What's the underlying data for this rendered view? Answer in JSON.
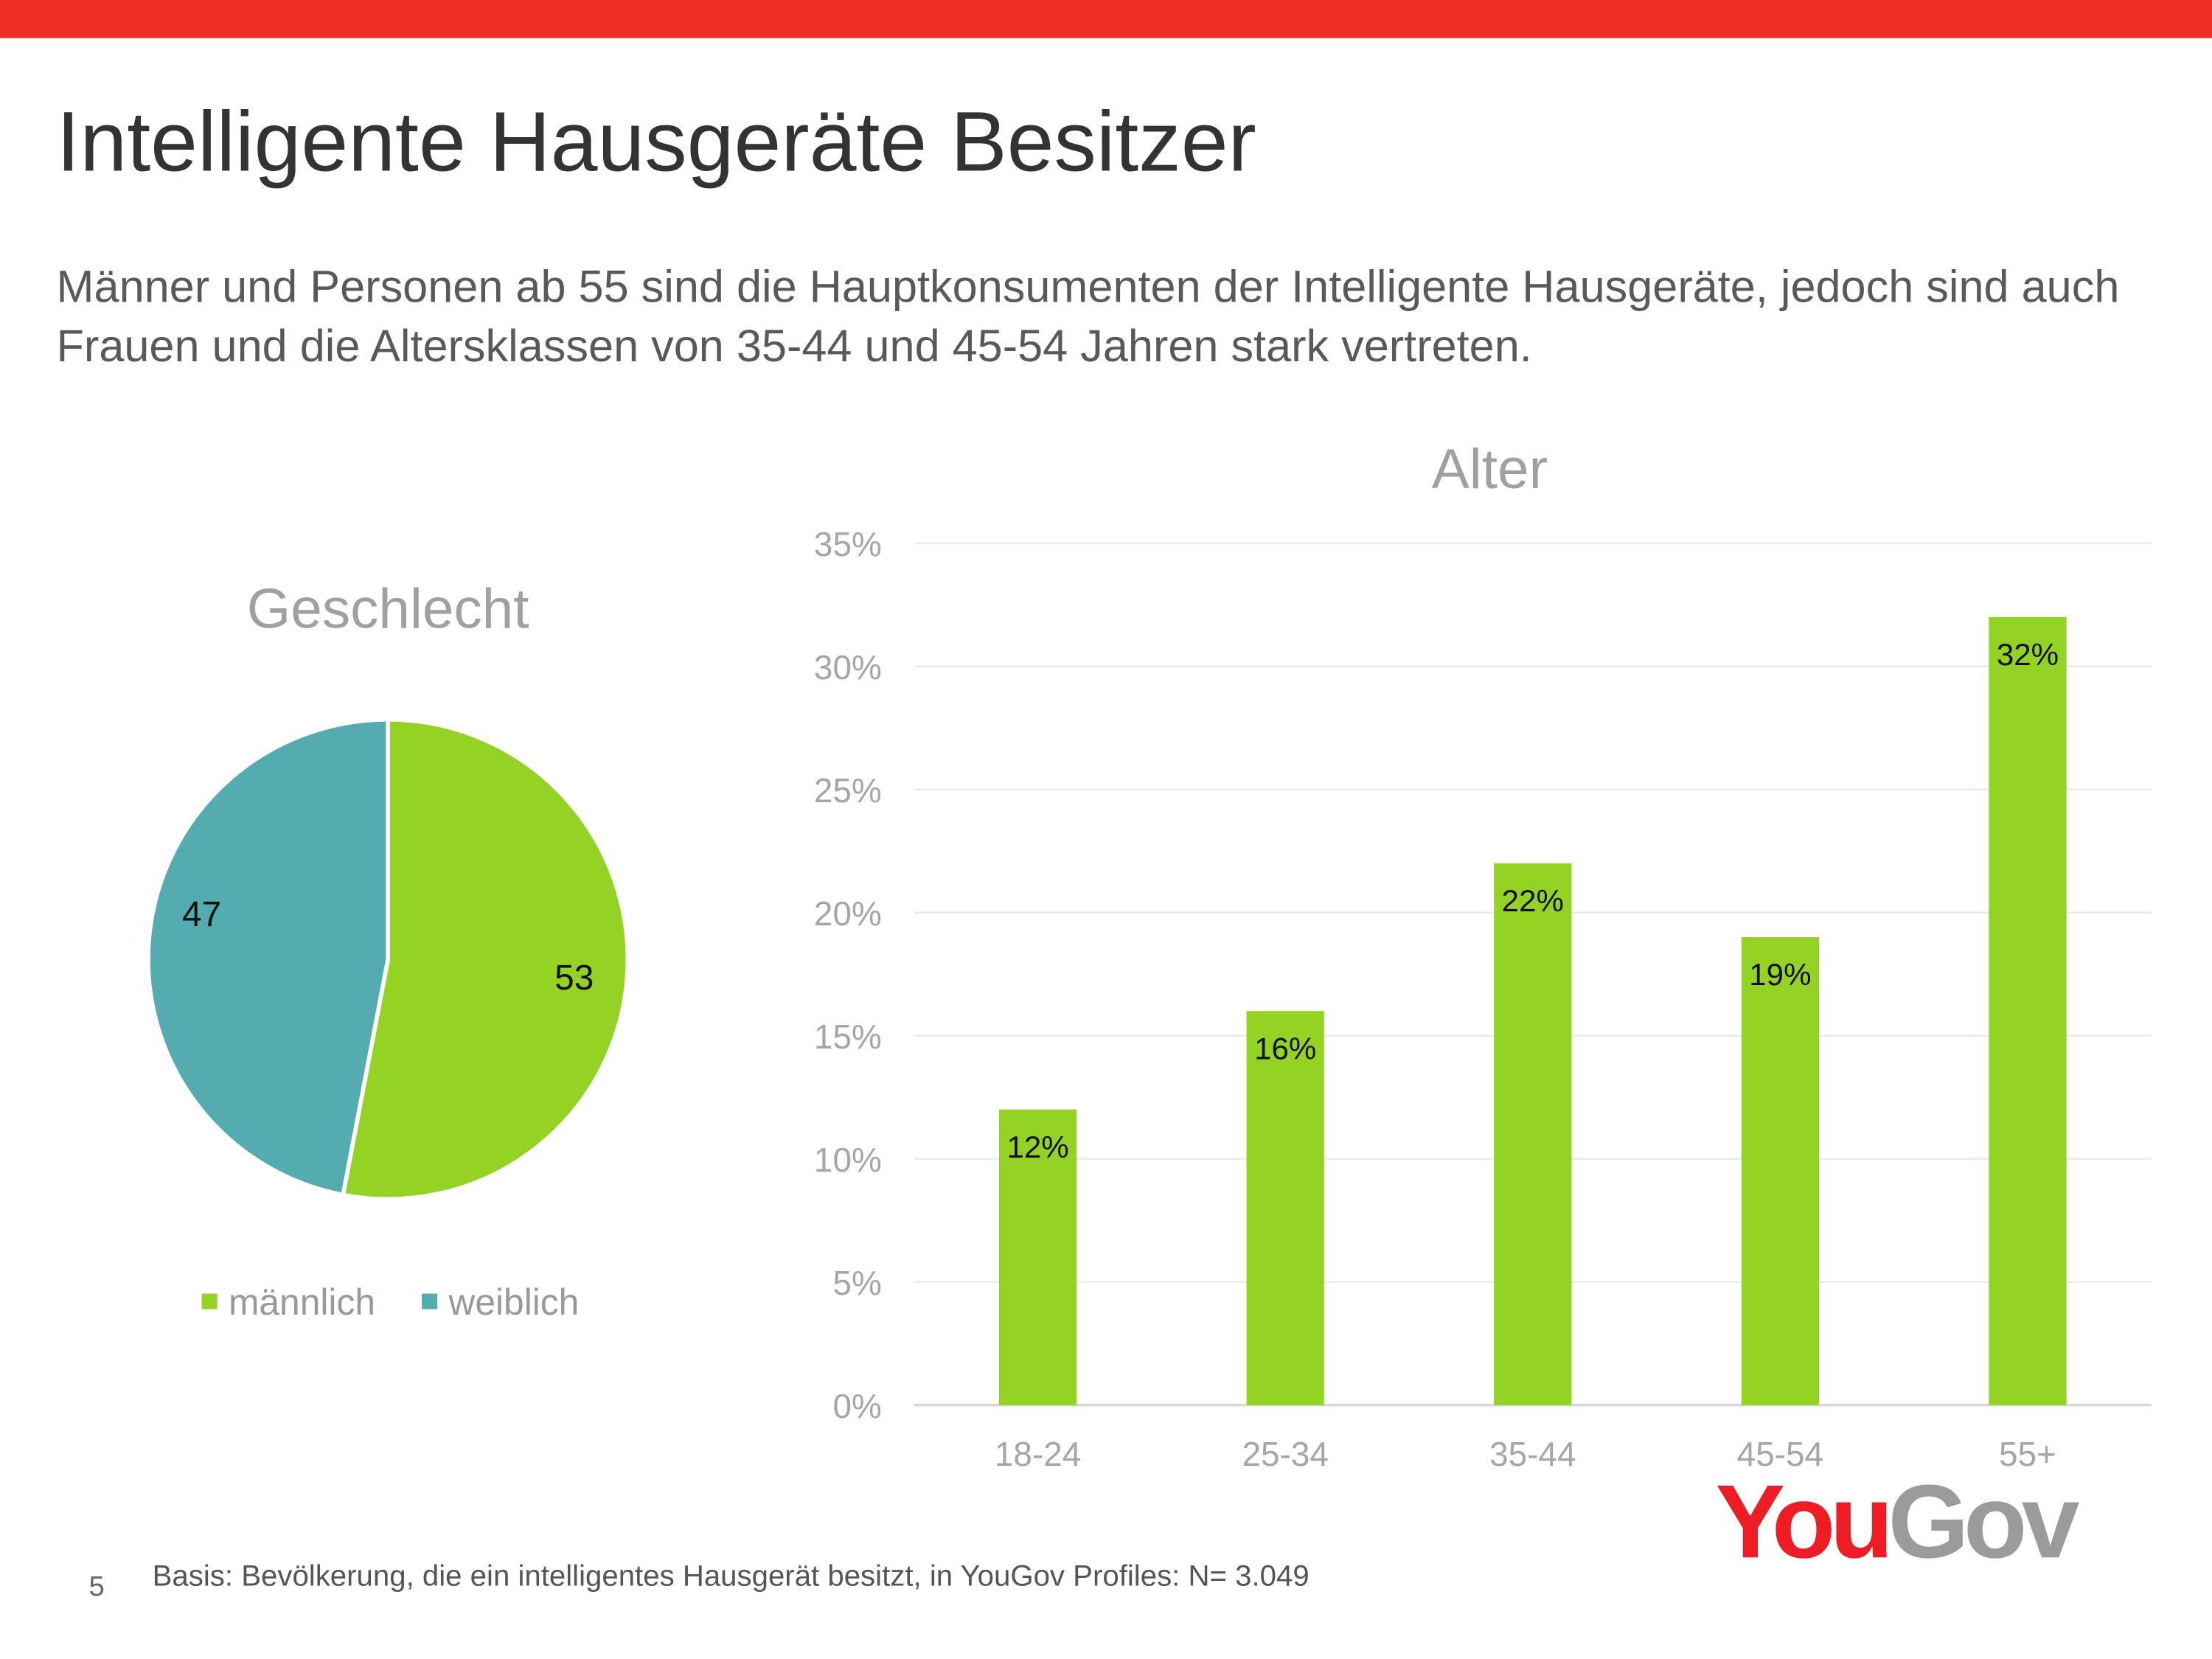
{
  "header": {
    "title": "Intelligente Hausgeräte Besitzer",
    "subtitle": "Männer und Personen ab 55 sind die Hauptkonsumenten der Intelligente Hausgeräte, jedoch sind auch Frauen und die Altersklassen von 35-44 und 45-54 Jahren stark vertreten."
  },
  "chart_data": [
    {
      "type": "pie",
      "title": "Geschlecht",
      "categories": [
        "männlich",
        "weiblich"
      ],
      "values": [
        53,
        47
      ],
      "colors": [
        "#94d224",
        "#55acb0"
      ],
      "legend": "bottom"
    },
    {
      "type": "bar",
      "title": "Alter",
      "categories": [
        "18-24",
        "25-34",
        "35-44",
        "45-54",
        "55+"
      ],
      "values": [
        12,
        16,
        22,
        19,
        32
      ],
      "data_labels": [
        "12%",
        "16%",
        "22%",
        "19%",
        "32%"
      ],
      "color": "#94d224",
      "ylim": [
        0,
        35
      ],
      "yticks": [
        "0%",
        "5%",
        "10%",
        "15%",
        "20%",
        "25%",
        "30%",
        "35%"
      ],
      "grid": true
    }
  ],
  "footer": {
    "page_number": "5",
    "basis": "Basis: Bevölkerung, die ein intelligentes Hausgerät besitzt, in YouGov Profiles: N= 3.049"
  },
  "logo": {
    "you": "You",
    "gov": "Gov",
    "you_color": "#ee1c25",
    "gov_color": "#9b9b9e"
  }
}
